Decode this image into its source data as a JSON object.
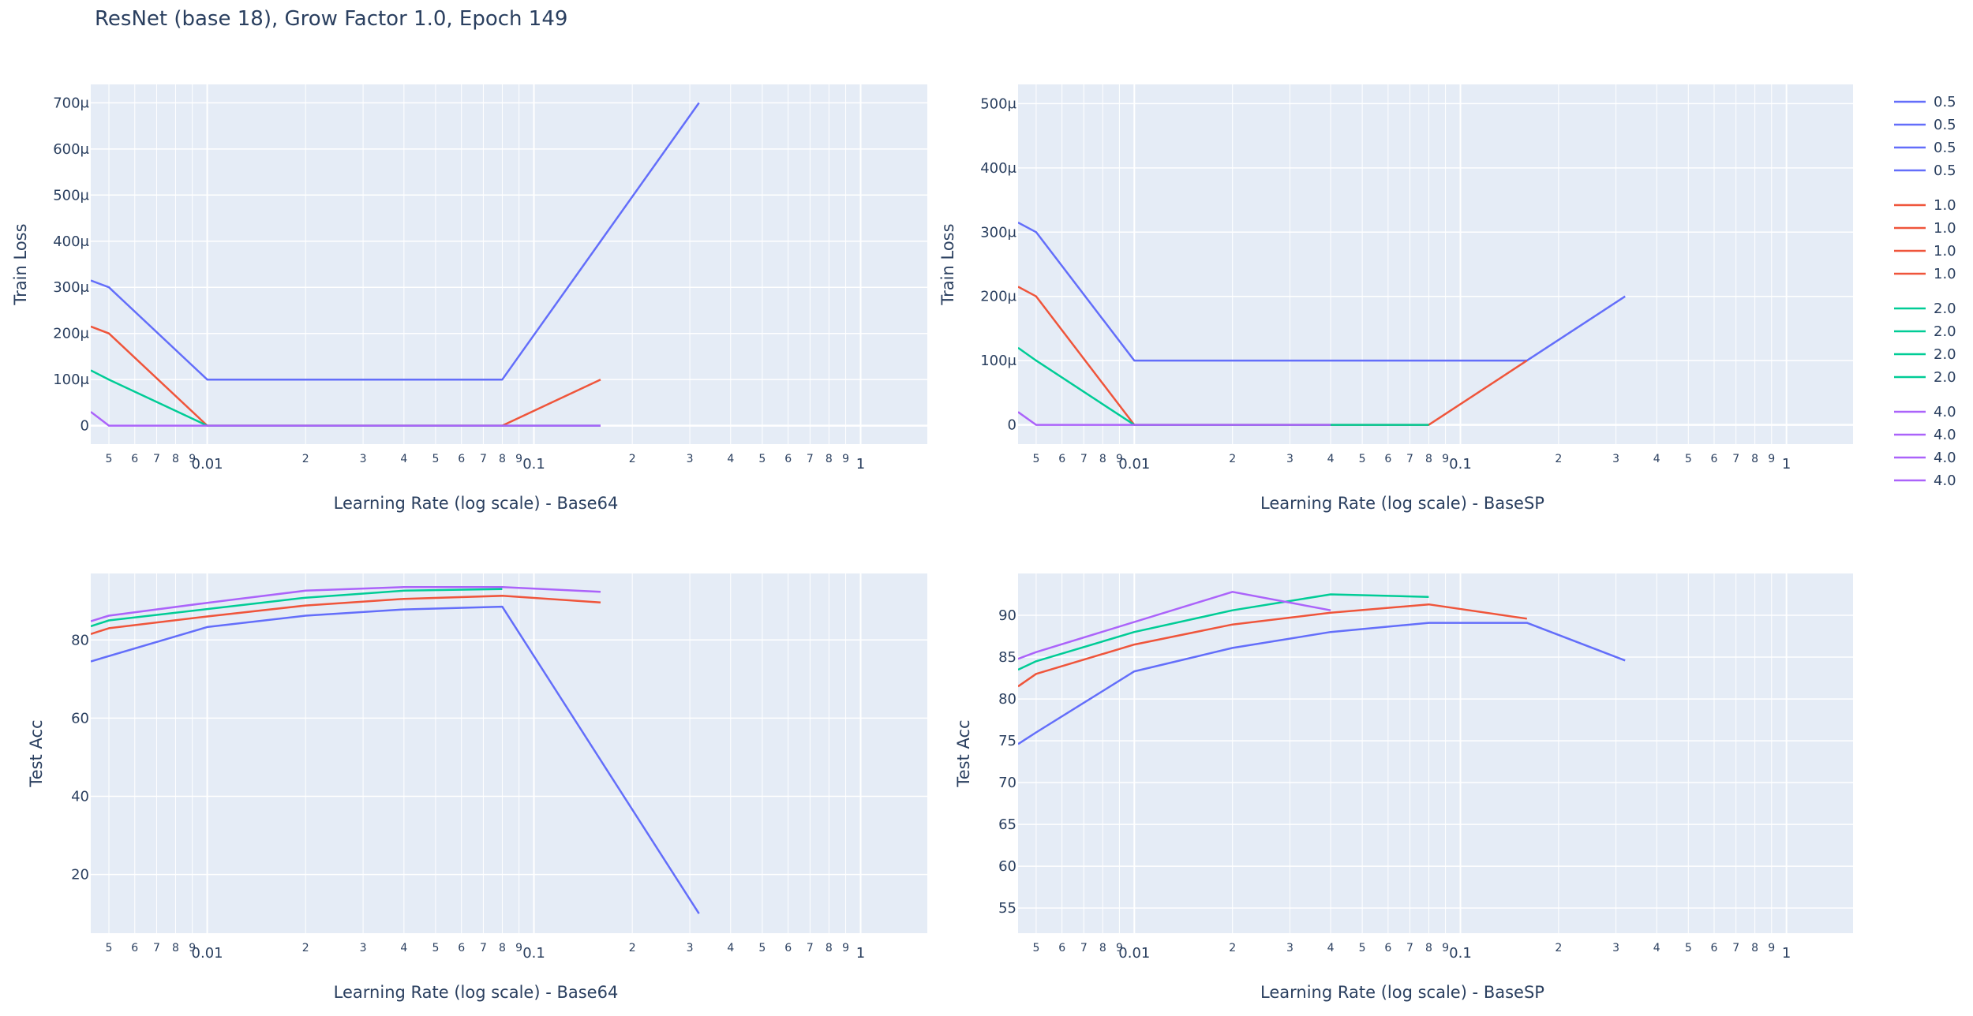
{
  "figure": {
    "title": "ResNet (base 18), Grow Factor 1.0, Epoch 149",
    "colors": {
      "plot_bg": "#e5ecf6",
      "grid": "#ffffff",
      "text": "#2a3f5f"
    }
  },
  "legend": {
    "placement": "right",
    "groups": [
      {
        "label": "0.5",
        "color": "#636efa",
        "entries": [
          "0.5",
          "0.5",
          "0.5",
          "0.5"
        ]
      },
      {
        "label": "1.0",
        "color": "#ef553b",
        "entries": [
          "1.0",
          "1.0",
          "1.0",
          "1.0"
        ]
      },
      {
        "label": "2.0",
        "color": "#00cc96",
        "entries": [
          "2.0",
          "2.0",
          "2.0",
          "2.0"
        ]
      },
      {
        "label": "4.0",
        "color": "#ab63fa",
        "entries": [
          "4.0",
          "4.0",
          "4.0",
          "4.0"
        ]
      }
    ]
  },
  "chart_data": [
    {
      "type": "line",
      "xlabel": "Learning Rate (log scale) - Base64",
      "ylabel": "Train Loss",
      "xscale": "log",
      "xlim": [
        0.0044,
        1.6
      ],
      "ylim": [
        -4e-05,
        0.00074
      ],
      "yticks": [
        0,
        0.0001,
        0.0002,
        0.0003,
        0.0004,
        0.0005,
        0.0006,
        0.0007
      ],
      "yticklabels": [
        "0",
        "100μ",
        "200μ",
        "300μ",
        "400μ",
        "500μ",
        "600μ",
        "700μ"
      ],
      "grid": true,
      "series": [
        {
          "name": "0.5",
          "color": "#636efa",
          "x": [
            0.0044,
            0.005,
            0.01,
            0.08,
            0.32
          ],
          "y": [
            0.000315,
            0.0003,
            0.0001,
            0.0001,
            0.0007
          ]
        },
        {
          "name": "1.0",
          "color": "#ef553b",
          "x": [
            0.0044,
            0.005,
            0.01,
            0.08,
            0.16
          ],
          "y": [
            0.000215,
            0.0002,
            0.0,
            0.0,
            0.0001
          ]
        },
        {
          "name": "2.0",
          "color": "#00cc96",
          "x": [
            0.0044,
            0.005,
            0.01,
            0.16
          ],
          "y": [
            0.00012,
            0.0001,
            0.0,
            0.0
          ]
        },
        {
          "name": "4.0",
          "color": "#ab63fa",
          "x": [
            0.0044,
            0.005,
            0.01,
            0.16
          ],
          "y": [
            3e-05,
            0.0,
            0.0,
            0.0
          ]
        }
      ]
    },
    {
      "type": "line",
      "xlabel": "Learning Rate (log scale) - BaseSP",
      "ylabel": "Train Loss",
      "xscale": "log",
      "xlim": [
        0.0044,
        1.6
      ],
      "ylim": [
        -3e-05,
        0.00053
      ],
      "yticks": [
        0,
        0.0001,
        0.0002,
        0.0003,
        0.0004,
        0.0005
      ],
      "yticklabels": [
        "0",
        "100μ",
        "200μ",
        "300μ",
        "400μ",
        "500μ"
      ],
      "grid": true,
      "series": [
        {
          "name": "0.5",
          "color": "#636efa",
          "x": [
            0.0044,
            0.005,
            0.01,
            0.16,
            0.32
          ],
          "y": [
            0.000315,
            0.0003,
            0.0001,
            0.0001,
            0.0002
          ]
        },
        {
          "name": "1.0",
          "color": "#ef553b",
          "x": [
            0.0044,
            0.005,
            0.01,
            0.08,
            0.16
          ],
          "y": [
            0.000215,
            0.0002,
            0.0,
            0.0,
            0.0001
          ]
        },
        {
          "name": "2.0",
          "color": "#00cc96",
          "x": [
            0.0044,
            0.005,
            0.01,
            0.08
          ],
          "y": [
            0.00012,
            0.0001,
            0.0,
            0.0
          ]
        },
        {
          "name": "4.0",
          "color": "#ab63fa",
          "x": [
            0.0044,
            0.005,
            0.01,
            0.04
          ],
          "y": [
            2e-05,
            0.0,
            0.0,
            0.0
          ]
        }
      ]
    },
    {
      "type": "line",
      "xlabel": "Learning Rate (log scale) - Base64",
      "ylabel": "Test Acc",
      "xscale": "log",
      "xlim": [
        0.0044,
        1.6
      ],
      "ylim": [
        5,
        97
      ],
      "yticks": [
        20,
        40,
        60,
        80
      ],
      "yticklabels": [
        "20",
        "40",
        "60",
        "80"
      ],
      "grid": true,
      "series": [
        {
          "name": "0.5",
          "color": "#636efa",
          "x": [
            0.0044,
            0.01,
            0.02,
            0.04,
            0.08,
            0.32
          ],
          "y": [
            74.5,
            83.3,
            86.2,
            87.8,
            88.5,
            10
          ]
        },
        {
          "name": "1.0",
          "color": "#ef553b",
          "x": [
            0.0044,
            0.005,
            0.01,
            0.02,
            0.04,
            0.08,
            0.16
          ],
          "y": [
            81.5,
            83,
            86,
            88.8,
            90.5,
            91.3,
            89.6
          ]
        },
        {
          "name": "2.0",
          "color": "#00cc96",
          "x": [
            0.0044,
            0.005,
            0.01,
            0.02,
            0.04,
            0.08
          ],
          "y": [
            83.5,
            85,
            87.9,
            90.8,
            92.6,
            93
          ]
        },
        {
          "name": "4.0",
          "color": "#ab63fa",
          "x": [
            0.0044,
            0.005,
            0.01,
            0.02,
            0.04,
            0.08,
            0.16
          ],
          "y": [
            84.8,
            86.2,
            89.5,
            92.6,
            93.5,
            93.5,
            92.3
          ]
        }
      ]
    },
    {
      "type": "line",
      "xlabel": "Learning Rate (log scale) - BaseSP",
      "ylabel": "Test Acc",
      "xscale": "log",
      "xlim": [
        0.0044,
        1.6
      ],
      "ylim": [
        52,
        95
      ],
      "yticks": [
        55,
        60,
        65,
        70,
        75,
        80,
        85,
        90
      ],
      "yticklabels": [
        "55",
        "60",
        "65",
        "70",
        "75",
        "80",
        "85",
        "90"
      ],
      "grid": true,
      "series": [
        {
          "name": "0.5",
          "color": "#636efa",
          "x": [
            0.0044,
            0.005,
            0.01,
            0.02,
            0.04,
            0.08,
            0.16,
            0.32
          ],
          "y": [
            74.6,
            76,
            83.3,
            86.1,
            88,
            89.1,
            89.1,
            84.6
          ]
        },
        {
          "name": "1.0",
          "color": "#ef553b",
          "x": [
            0.0044,
            0.005,
            0.01,
            0.02,
            0.04,
            0.08,
            0.16
          ],
          "y": [
            81.5,
            83,
            86.5,
            88.9,
            90.3,
            91.3,
            89.6
          ]
        },
        {
          "name": "2.0",
          "color": "#00cc96",
          "x": [
            0.0044,
            0.005,
            0.01,
            0.02,
            0.04,
            0.08
          ],
          "y": [
            83.5,
            84.5,
            88,
            90.6,
            92.5,
            92.2
          ]
        },
        {
          "name": "4.0",
          "color": "#ab63fa",
          "x": [
            0.0044,
            0.005,
            0.02,
            0.04
          ],
          "y": [
            84.8,
            85.6,
            92.8,
            90.6
          ]
        }
      ]
    }
  ]
}
